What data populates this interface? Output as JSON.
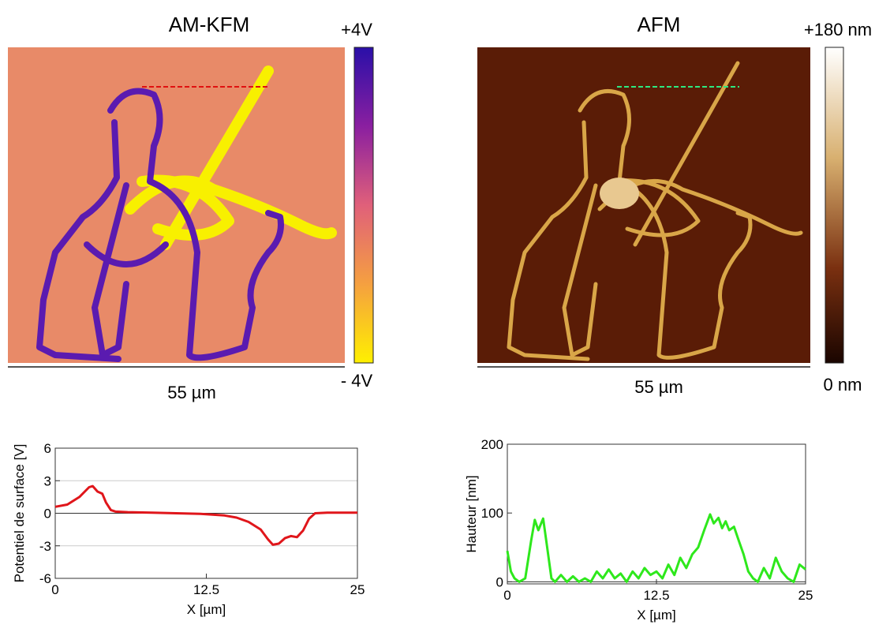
{
  "images": [
    {
      "title": "AM-KFM",
      "colorbar_max": "+4V",
      "colorbar_min": "- 4V",
      "scale": "55 µm"
    },
    {
      "title": "AFM",
      "colorbar_max": "+180 nm",
      "colorbar_min": "0 nm",
      "scale": "55 µm"
    }
  ],
  "chart_data": [
    {
      "type": "line",
      "x_label": "X [µm]",
      "y_label": "Potentiel de surface [V]",
      "xlim": [
        0,
        25
      ],
      "xticks": [
        0,
        12.5,
        25
      ],
      "ylim": [
        -6,
        6
      ],
      "yticks": [
        -6,
        -3,
        0,
        3,
        6
      ],
      "grid": true,
      "x": [
        0,
        1,
        2,
        2.8,
        3.1,
        3.5,
        3.9,
        4.2,
        4.6,
        5,
        6,
        8,
        10,
        12,
        14,
        15,
        16,
        17,
        17.6,
        18,
        18.5,
        19,
        19.5,
        20,
        20.5,
        21,
        21.5,
        22.5,
        25
      ],
      "series": [
        {
          "color": "#e0161b",
          "values": [
            0.6,
            0.8,
            1.5,
            2.4,
            2.5,
            2.0,
            1.8,
            1.0,
            0.3,
            0.15,
            0.1,
            0.05,
            0,
            -0.05,
            -0.2,
            -0.4,
            -0.8,
            -1.5,
            -2.4,
            -2.9,
            -2.8,
            -2.3,
            -2.1,
            -2.2,
            -1.6,
            -0.5,
            0,
            0.05,
            0.05
          ]
        }
      ]
    },
    {
      "type": "line",
      "x_label": "X [µm]",
      "y_label": "Hauteur [nm]",
      "xlim": [
        0,
        25
      ],
      "xticks": [
        0,
        12.5,
        25
      ],
      "ylim": [
        -3,
        200
      ],
      "yticks": [
        0,
        100,
        200
      ],
      "grid": false,
      "x": [
        0,
        0.3,
        0.6,
        1,
        1.5,
        2,
        2.3,
        2.6,
        3,
        3.3,
        3.7,
        4,
        4.5,
        5,
        5.5,
        6,
        6.5,
        7,
        7.5,
        8,
        8.5,
        9,
        9.5,
        10,
        10.5,
        11,
        11.5,
        12,
        12.5,
        13,
        13.5,
        14,
        14.5,
        15,
        15.5,
        16,
        16.5,
        17,
        17.3,
        17.7,
        18,
        18.3,
        18.6,
        19,
        19.4,
        19.8,
        20.2,
        20.6,
        21,
        21.5,
        22,
        22.5,
        23,
        23.5,
        24,
        24.5,
        25
      ],
      "series": [
        {
          "color": "#2ee81c",
          "values": [
            45,
            15,
            5,
            0,
            5,
            60,
            90,
            75,
            92,
            55,
            5,
            0,
            10,
            0,
            8,
            0,
            5,
            0,
            15,
            5,
            18,
            5,
            12,
            0,
            15,
            5,
            20,
            10,
            15,
            5,
            25,
            10,
            35,
            20,
            40,
            50,
            75,
            98,
            85,
            93,
            78,
            88,
            75,
            80,
            60,
            40,
            15,
            5,
            0,
            20,
            5,
            35,
            15,
            5,
            0,
            25,
            18
          ]
        }
      ]
    }
  ]
}
